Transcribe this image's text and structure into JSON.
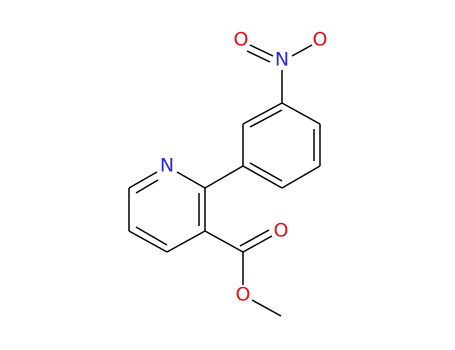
{
  "molecule": {
    "atoms": [
      {
        "label": "O"
      },
      {
        "label": "N"
      },
      {
        "label": "O"
      },
      {
        "label": "N"
      },
      {
        "label": "O"
      },
      {
        "label": "O"
      }
    ]
  }
}
